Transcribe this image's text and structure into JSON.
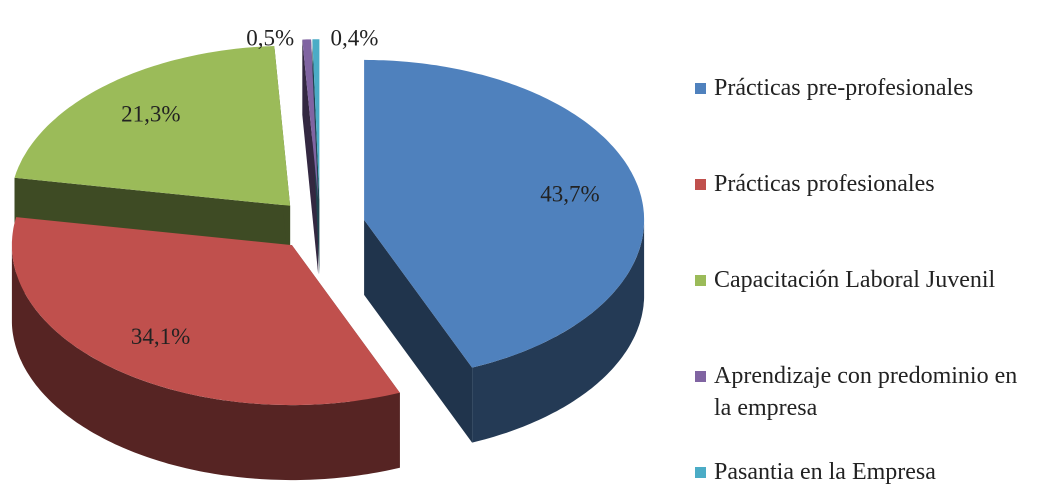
{
  "chart_data": {
    "type": "pie",
    "three_d": true,
    "exploded": true,
    "categories": [
      "Prácticas pre-profesionales",
      "Prácticas profesionales",
      "Capacitación Laboral Juvenil",
      "Aprendizaje con predominio en la empresa",
      "Pasantia en la Empresa"
    ],
    "values": [
      43.7,
      34.1,
      21.3,
      0.5,
      0.4
    ],
    "value_labels": [
      "43,7%",
      "34,1%",
      "21,3%",
      "0,5%",
      "0,4%"
    ],
    "colors": [
      "#4f81bd",
      "#c0504d",
      "#9bbb59",
      "#8064a2",
      "#4bacc6"
    ],
    "legend": "right"
  }
}
